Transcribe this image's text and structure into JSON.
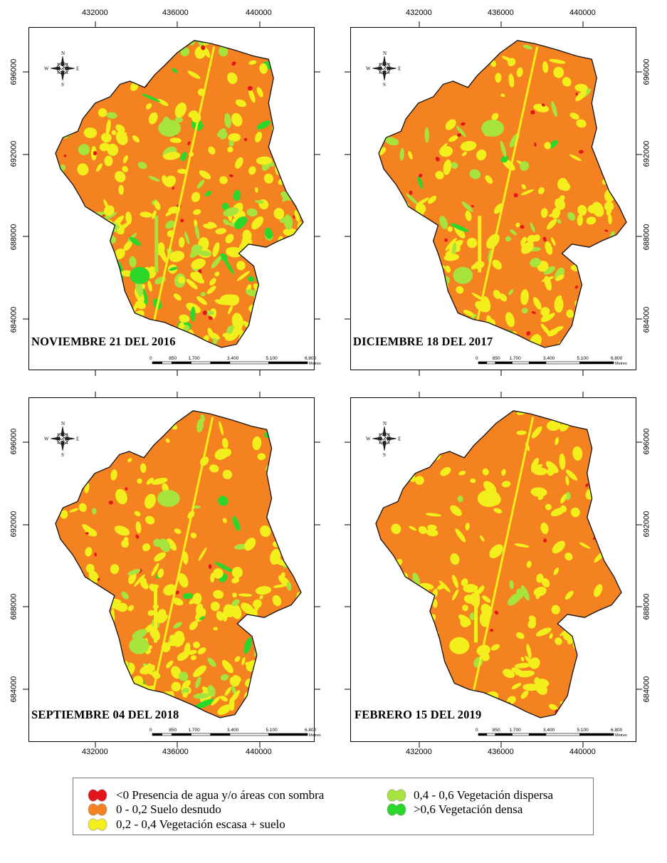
{
  "panels": [
    {
      "id": "p1",
      "date_label": "NOVIEMBRE 21 DEL 2016"
    },
    {
      "id": "p2",
      "date_label": "DICIEMBRE 18 DEL 2017"
    },
    {
      "id": "p3",
      "date_label": "SEPTIEMBRE 04 DEL 2018"
    },
    {
      "id": "p4",
      "date_label": "FEBRERO 15 DEL 2019"
    }
  ],
  "x_ticks": [
    "432000",
    "436000",
    "440000"
  ],
  "y_ticks": [
    "696000",
    "692000",
    "688000",
    "684000"
  ],
  "scale_bar": {
    "labels": [
      "0",
      "850",
      "1.700",
      "3.400",
      "5.100",
      "6.800"
    ],
    "unit": "Metres"
  },
  "compass": {
    "n": "N",
    "s": "S",
    "e": "E",
    "w": "W",
    "icon": "compass-rose-icon"
  },
  "legend": [
    {
      "label": "<0 Presencia de agua y/o áreas con sombra",
      "color": "#e3161b"
    },
    {
      "label": "0 - 0,2 Suelo desnudo",
      "color": "#f58220"
    },
    {
      "label": "0,2 - 0,4 Vegetación escasa + suelo",
      "color": "#f2ef1c"
    },
    {
      "label": "0,4 - 0,6 Vegetación dispersa",
      "color": "#a6e33c"
    },
    {
      "label": ">0,6 Vegetación densa",
      "color": "#2bd72b"
    }
  ],
  "class_colors": {
    "water": "#e3161b",
    "bare_soil": "#f58220",
    "sparse": "#f2ef1c",
    "dispersed": "#a6e33c",
    "dense": "#2bd72b"
  }
}
